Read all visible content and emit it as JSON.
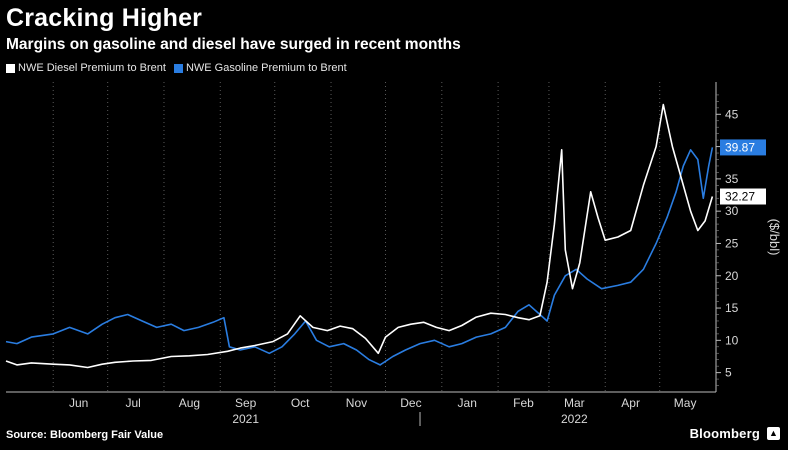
{
  "header": {
    "title": "Cracking Higher",
    "subtitle": "Margins on gasoline and diesel have surged in recent months"
  },
  "footer": {
    "source": "Source: Bloomberg Fair Value",
    "brand": "Bloomberg"
  },
  "colors": {
    "diesel": "#ffffff",
    "gasoline": "#2a7de1",
    "background": "#000000",
    "grid": "#555555"
  },
  "chart_data": {
    "type": "line",
    "title": "Cracking Higher",
    "subtitle": "Margins on gasoline and diesel have surged in recent months",
    "ylabel": "($/bbl)",
    "ylim": [
      2,
      50
    ],
    "yticks": [
      5,
      10,
      15,
      20,
      25,
      30,
      35,
      40,
      45
    ],
    "y_axis_side": "right",
    "grid": "vertical dotted",
    "legend_position": "top-left",
    "x_range": [
      "2021-05-06",
      "2022-06-01"
    ],
    "x_tick_labels": [
      "Jun",
      "Jul",
      "Aug",
      "Sep",
      "Oct",
      "Nov",
      "Dec",
      "Jan",
      "Feb",
      "Mar",
      "Apr",
      "May"
    ],
    "x_tick_dates": [
      "2021-06-15",
      "2021-07-15",
      "2021-08-15",
      "2021-09-15",
      "2021-10-15",
      "2021-11-15",
      "2021-12-15",
      "2022-01-15",
      "2022-02-15",
      "2022-03-15",
      "2022-04-15",
      "2022-05-15"
    ],
    "year_labels": [
      {
        "text": "2021",
        "date": "2021-09-15"
      },
      {
        "text": "2022",
        "date": "2022-03-15"
      }
    ],
    "series": [
      {
        "name": "NWE Diesel Premium to Brent",
        "color": "#ffffff",
        "last_value_label": "32.27",
        "points": [
          [
            "2021-05-06",
            6.8
          ],
          [
            "2021-05-12",
            6.2
          ],
          [
            "2021-05-20",
            6.5
          ],
          [
            "2021-06-01",
            6.3
          ],
          [
            "2021-06-10",
            6.2
          ],
          [
            "2021-06-20",
            5.8
          ],
          [
            "2021-06-28",
            6.3
          ],
          [
            "2021-07-05",
            6.6
          ],
          [
            "2021-07-15",
            6.8
          ],
          [
            "2021-07-25",
            6.9
          ],
          [
            "2021-08-05",
            7.5
          ],
          [
            "2021-08-15",
            7.6
          ],
          [
            "2021-08-25",
            7.8
          ],
          [
            "2021-09-05",
            8.3
          ],
          [
            "2021-09-12",
            8.8
          ],
          [
            "2021-09-20",
            9.2
          ],
          [
            "2021-09-30",
            9.8
          ],
          [
            "2021-10-08",
            11.0
          ],
          [
            "2021-10-15",
            13.8
          ],
          [
            "2021-10-22",
            12.0
          ],
          [
            "2021-10-30",
            11.5
          ],
          [
            "2021-11-06",
            12.2
          ],
          [
            "2021-11-13",
            11.8
          ],
          [
            "2021-11-20",
            10.3
          ],
          [
            "2021-11-27",
            8.0
          ],
          [
            "2021-12-01",
            10.5
          ],
          [
            "2021-12-08",
            12.0
          ],
          [
            "2021-12-15",
            12.5
          ],
          [
            "2021-12-22",
            12.8
          ],
          [
            "2021-12-29",
            12.0
          ],
          [
            "2022-01-05",
            11.5
          ],
          [
            "2022-01-12",
            12.3
          ],
          [
            "2022-01-20",
            13.6
          ],
          [
            "2022-01-28",
            14.2
          ],
          [
            "2022-02-05",
            14.0
          ],
          [
            "2022-02-12",
            13.5
          ],
          [
            "2022-02-18",
            13.2
          ],
          [
            "2022-02-24",
            13.8
          ],
          [
            "2022-02-28",
            19.0
          ],
          [
            "2022-03-04",
            28.0
          ],
          [
            "2022-03-08",
            39.5
          ],
          [
            "2022-03-10",
            24.0
          ],
          [
            "2022-03-14",
            18.0
          ],
          [
            "2022-03-18",
            22.0
          ],
          [
            "2022-03-24",
            33.0
          ],
          [
            "2022-03-28",
            29.0
          ],
          [
            "2022-04-01",
            25.5
          ],
          [
            "2022-04-08",
            26.0
          ],
          [
            "2022-04-15",
            27.0
          ],
          [
            "2022-04-22",
            34.0
          ],
          [
            "2022-04-29",
            40.0
          ],
          [
            "2022-05-03",
            46.5
          ],
          [
            "2022-05-08",
            40.0
          ],
          [
            "2022-05-13",
            35.0
          ],
          [
            "2022-05-18",
            30.0
          ],
          [
            "2022-05-22",
            27.0
          ],
          [
            "2022-05-26",
            28.5
          ],
          [
            "2022-05-30",
            32.27
          ]
        ]
      },
      {
        "name": "NWE Gasoline Premium to Brent",
        "color": "#2a7de1",
        "last_value_label": "39.87",
        "points": [
          [
            "2021-05-06",
            9.8
          ],
          [
            "2021-05-12",
            9.5
          ],
          [
            "2021-05-20",
            10.5
          ],
          [
            "2021-06-01",
            11.0
          ],
          [
            "2021-06-10",
            12.0
          ],
          [
            "2021-06-20",
            11.0
          ],
          [
            "2021-06-28",
            12.5
          ],
          [
            "2021-07-05",
            13.5
          ],
          [
            "2021-07-12",
            14.0
          ],
          [
            "2021-07-20",
            13.0
          ],
          [
            "2021-07-28",
            12.0
          ],
          [
            "2021-08-05",
            12.5
          ],
          [
            "2021-08-12",
            11.5
          ],
          [
            "2021-08-20",
            12.0
          ],
          [
            "2021-08-28",
            12.8
          ],
          [
            "2021-09-03",
            13.5
          ],
          [
            "2021-09-06",
            9.0
          ],
          [
            "2021-09-12",
            8.5
          ],
          [
            "2021-09-20",
            9.0
          ],
          [
            "2021-09-28",
            8.0
          ],
          [
            "2021-10-05",
            9.0
          ],
          [
            "2021-10-12",
            11.0
          ],
          [
            "2021-10-18",
            13.0
          ],
          [
            "2021-10-24",
            10.0
          ],
          [
            "2021-10-31",
            9.0
          ],
          [
            "2021-11-08",
            9.5
          ],
          [
            "2021-11-15",
            8.5
          ],
          [
            "2021-11-22",
            7.0
          ],
          [
            "2021-11-28",
            6.2
          ],
          [
            "2021-12-05",
            7.5
          ],
          [
            "2021-12-12",
            8.5
          ],
          [
            "2021-12-20",
            9.5
          ],
          [
            "2021-12-28",
            10.0
          ],
          [
            "2022-01-05",
            9.0
          ],
          [
            "2022-01-12",
            9.5
          ],
          [
            "2022-01-20",
            10.5
          ],
          [
            "2022-01-28",
            11.0
          ],
          [
            "2022-02-05",
            12.0
          ],
          [
            "2022-02-12",
            14.5
          ],
          [
            "2022-02-18",
            15.5
          ],
          [
            "2022-02-24",
            14.0
          ],
          [
            "2022-02-28",
            13.0
          ],
          [
            "2022-03-04",
            17.0
          ],
          [
            "2022-03-10",
            20.0
          ],
          [
            "2022-03-16",
            21.0
          ],
          [
            "2022-03-22",
            19.5
          ],
          [
            "2022-03-30",
            18.0
          ],
          [
            "2022-04-08",
            18.5
          ],
          [
            "2022-04-15",
            19.0
          ],
          [
            "2022-04-22",
            21.0
          ],
          [
            "2022-04-29",
            25.0
          ],
          [
            "2022-05-05",
            29.0
          ],
          [
            "2022-05-10",
            33.0
          ],
          [
            "2022-05-14",
            37.0
          ],
          [
            "2022-05-18",
            39.5
          ],
          [
            "2022-05-22",
            38.0
          ],
          [
            "2022-05-25",
            32.0
          ],
          [
            "2022-05-28",
            37.0
          ],
          [
            "2022-05-30",
            39.87
          ]
        ]
      }
    ]
  }
}
